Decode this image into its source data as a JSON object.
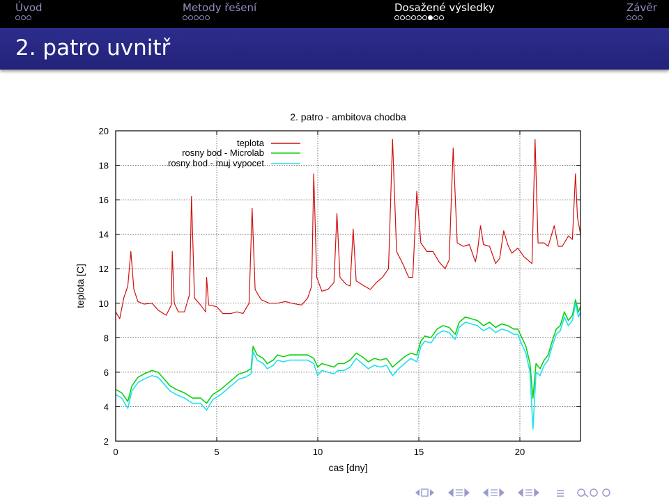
{
  "header": {
    "sections": [
      {
        "label": "Úvod",
        "dots": 3,
        "current": -1,
        "active": false
      },
      {
        "label": "Metody řešení",
        "dots": 5,
        "current": -1,
        "active": false
      },
      {
        "label": "Dosažené výsledky",
        "dots": 9,
        "current": 6,
        "active": true
      },
      {
        "label": "Závěr",
        "dots": 3,
        "current": -1,
        "active": false
      }
    ]
  },
  "frame": {
    "title": "2. patro uvnitř"
  },
  "colors": {
    "teplota": "#d01010",
    "microlab": "#10d010",
    "vypocet": "#20e0f0",
    "header_bg": "#000000",
    "title_bg": "#2c2c8c"
  },
  "icons": [
    "nav-left-icon",
    "nav-frame-icon",
    "nav-right-icon",
    "nav-subsection-icon",
    "nav-section-icon",
    "nav-document-icon",
    "nav-align-icon",
    "nav-search-icon"
  ],
  "chart_data": {
    "type": "line",
    "title": "2. patro - ambitova chodba",
    "xlabel": "cas [dny]",
    "ylabel": "teplota [C]",
    "xlim": [
      0,
      23
    ],
    "ylim": [
      2,
      20
    ],
    "xticks": [
      0,
      5,
      10,
      15,
      20
    ],
    "yticks": [
      2,
      4,
      6,
      8,
      10,
      12,
      14,
      16,
      18,
      20
    ],
    "grid": true,
    "legend": "top-left",
    "series": [
      {
        "name": "teplota",
        "color": "#d01010",
        "points": [
          [
            0,
            9.5
          ],
          [
            0.2,
            9.1
          ],
          [
            0.4,
            10.3
          ],
          [
            0.6,
            11.0
          ],
          [
            0.75,
            13.0
          ],
          [
            0.9,
            10.8
          ],
          [
            1.1,
            10.1
          ],
          [
            1.4,
            9.95
          ],
          [
            1.8,
            10.0
          ],
          [
            2.1,
            9.6
          ],
          [
            2.5,
            9.3
          ],
          [
            2.75,
            9.9
          ],
          [
            2.8,
            13.0
          ],
          [
            2.9,
            10.0
          ],
          [
            3.1,
            9.5
          ],
          [
            3.4,
            9.5
          ],
          [
            3.65,
            10.5
          ],
          [
            3.75,
            16.2
          ],
          [
            3.9,
            10.3
          ],
          [
            4.2,
            9.9
          ],
          [
            4.45,
            9.5
          ],
          [
            4.5,
            11.5
          ],
          [
            4.6,
            9.9
          ],
          [
            5.0,
            9.8
          ],
          [
            5.3,
            9.4
          ],
          [
            5.7,
            9.4
          ],
          [
            6.0,
            9.5
          ],
          [
            6.3,
            9.4
          ],
          [
            6.6,
            10.0
          ],
          [
            6.75,
            15.5
          ],
          [
            6.9,
            10.8
          ],
          [
            7.2,
            10.2
          ],
          [
            7.6,
            10.0
          ],
          [
            8.0,
            10.0
          ],
          [
            8.4,
            10.1
          ],
          [
            8.7,
            10.0
          ],
          [
            9.2,
            9.9
          ],
          [
            9.5,
            10.3
          ],
          [
            9.7,
            11.0
          ],
          [
            9.8,
            17.5
          ],
          [
            9.95,
            11.5
          ],
          [
            10.2,
            10.7
          ],
          [
            10.5,
            10.8
          ],
          [
            10.8,
            11.2
          ],
          [
            10.95,
            15.2
          ],
          [
            11.1,
            11.5
          ],
          [
            11.4,
            11.1
          ],
          [
            11.6,
            11.0
          ],
          [
            11.75,
            14.3
          ],
          [
            11.9,
            11.3
          ],
          [
            12.3,
            11.0
          ],
          [
            12.6,
            10.8
          ],
          [
            12.9,
            11.2
          ],
          [
            13.2,
            11.5
          ],
          [
            13.5,
            12.0
          ],
          [
            13.7,
            19.5
          ],
          [
            13.9,
            13.0
          ],
          [
            14.2,
            12.3
          ],
          [
            14.5,
            11.5
          ],
          [
            14.7,
            11.5
          ],
          [
            14.9,
            16.5
          ],
          [
            15.1,
            13.5
          ],
          [
            15.4,
            13.0
          ],
          [
            15.7,
            13.0
          ],
          [
            16.0,
            12.4
          ],
          [
            16.3,
            12.0
          ],
          [
            16.5,
            12.5
          ],
          [
            16.7,
            19.0
          ],
          [
            16.9,
            13.5
          ],
          [
            17.2,
            13.3
          ],
          [
            17.5,
            13.4
          ],
          [
            17.8,
            12.4
          ],
          [
            17.9,
            13.0
          ],
          [
            18.05,
            14.5
          ],
          [
            18.2,
            13.4
          ],
          [
            18.5,
            13.3
          ],
          [
            18.8,
            12.3
          ],
          [
            19.0,
            12.6
          ],
          [
            19.2,
            14.2
          ],
          [
            19.4,
            13.4
          ],
          [
            19.6,
            12.9
          ],
          [
            19.9,
            13.2
          ],
          [
            20.2,
            12.7
          ],
          [
            20.6,
            12.3
          ],
          [
            20.75,
            19.5
          ],
          [
            20.9,
            13.5
          ],
          [
            21.2,
            13.5
          ],
          [
            21.4,
            13.3
          ],
          [
            21.7,
            14.5
          ],
          [
            21.9,
            13.3
          ],
          [
            22.1,
            13.3
          ],
          [
            22.4,
            13.9
          ],
          [
            22.6,
            13.7
          ],
          [
            22.75,
            17.5
          ],
          [
            22.85,
            15.0
          ],
          [
            23.0,
            14.0
          ]
        ]
      },
      {
        "name": "rosny bod - Microlab",
        "color": "#10d010",
        "points": [
          [
            0,
            5.0
          ],
          [
            0.3,
            4.8
          ],
          [
            0.6,
            4.3
          ],
          [
            0.8,
            5.2
          ],
          [
            1.1,
            5.7
          ],
          [
            1.4,
            5.9
          ],
          [
            1.8,
            6.1
          ],
          [
            2.1,
            6.0
          ],
          [
            2.4,
            5.6
          ],
          [
            2.7,
            5.2
          ],
          [
            3.0,
            5.0
          ],
          [
            3.4,
            4.8
          ],
          [
            3.8,
            4.5
          ],
          [
            4.2,
            4.5
          ],
          [
            4.5,
            4.2
          ],
          [
            4.8,
            4.7
          ],
          [
            5.2,
            5.0
          ],
          [
            5.5,
            5.3
          ],
          [
            5.8,
            5.6
          ],
          [
            6.1,
            5.9
          ],
          [
            6.4,
            6.0
          ],
          [
            6.7,
            6.2
          ],
          [
            6.8,
            7.5
          ],
          [
            7.0,
            7.0
          ],
          [
            7.3,
            6.8
          ],
          [
            7.5,
            6.5
          ],
          [
            7.8,
            6.7
          ],
          [
            8.0,
            7.0
          ],
          [
            8.3,
            6.9
          ],
          [
            8.6,
            7.0
          ],
          [
            8.9,
            7.0
          ],
          [
            9.2,
            7.0
          ],
          [
            9.5,
            7.0
          ],
          [
            9.8,
            6.8
          ],
          [
            10.0,
            6.3
          ],
          [
            10.2,
            6.5
          ],
          [
            10.5,
            6.4
          ],
          [
            10.8,
            6.3
          ],
          [
            11.0,
            6.5
          ],
          [
            11.3,
            6.5
          ],
          [
            11.6,
            6.7
          ],
          [
            11.9,
            7.1
          ],
          [
            12.2,
            6.9
          ],
          [
            12.5,
            6.6
          ],
          [
            12.8,
            6.8
          ],
          [
            13.1,
            6.7
          ],
          [
            13.4,
            6.8
          ],
          [
            13.7,
            6.3
          ],
          [
            14.0,
            6.6
          ],
          [
            14.3,
            6.9
          ],
          [
            14.6,
            7.1
          ],
          [
            14.9,
            7.0
          ],
          [
            15.1,
            7.8
          ],
          [
            15.3,
            8.1
          ],
          [
            15.6,
            8.0
          ],
          [
            15.9,
            8.5
          ],
          [
            16.2,
            8.7
          ],
          [
            16.5,
            8.6
          ],
          [
            16.8,
            8.2
          ],
          [
            17.0,
            8.9
          ],
          [
            17.3,
            9.2
          ],
          [
            17.6,
            9.1
          ],
          [
            17.9,
            9.0
          ],
          [
            18.2,
            8.7
          ],
          [
            18.5,
            8.9
          ],
          [
            18.8,
            8.6
          ],
          [
            19.1,
            8.8
          ],
          [
            19.4,
            8.7
          ],
          [
            19.7,
            8.5
          ],
          [
            19.9,
            8.5
          ],
          [
            20.1,
            8.0
          ],
          [
            20.3,
            7.5
          ],
          [
            20.5,
            6.5
          ],
          [
            20.65,
            4.5
          ],
          [
            20.8,
            6.5
          ],
          [
            21.0,
            6.2
          ],
          [
            21.2,
            6.7
          ],
          [
            21.4,
            7.0
          ],
          [
            21.6,
            7.8
          ],
          [
            21.8,
            8.5
          ],
          [
            22.0,
            8.7
          ],
          [
            22.2,
            9.5
          ],
          [
            22.4,
            9.0
          ],
          [
            22.6,
            9.3
          ],
          [
            22.75,
            10.2
          ],
          [
            22.9,
            9.5
          ],
          [
            23.0,
            9.8
          ]
        ]
      },
      {
        "name": "rosny bod - muj vypocet",
        "color": "#20e0f0",
        "points": [
          [
            0,
            4.7
          ],
          [
            0.3,
            4.5
          ],
          [
            0.6,
            3.9
          ],
          [
            0.8,
            4.9
          ],
          [
            1.1,
            5.4
          ],
          [
            1.4,
            5.6
          ],
          [
            1.8,
            5.8
          ],
          [
            2.1,
            5.7
          ],
          [
            2.4,
            5.3
          ],
          [
            2.7,
            4.9
          ],
          [
            3.0,
            4.7
          ],
          [
            3.4,
            4.5
          ],
          [
            3.8,
            4.2
          ],
          [
            4.2,
            4.2
          ],
          [
            4.5,
            3.8
          ],
          [
            4.8,
            4.4
          ],
          [
            5.2,
            4.7
          ],
          [
            5.5,
            5.0
          ],
          [
            5.8,
            5.3
          ],
          [
            6.1,
            5.6
          ],
          [
            6.4,
            5.7
          ],
          [
            6.7,
            5.9
          ],
          [
            6.8,
            7.2
          ],
          [
            7.0,
            6.7
          ],
          [
            7.3,
            6.5
          ],
          [
            7.5,
            6.2
          ],
          [
            7.8,
            6.4
          ],
          [
            8.0,
            6.7
          ],
          [
            8.3,
            6.6
          ],
          [
            8.6,
            6.7
          ],
          [
            8.9,
            6.7
          ],
          [
            9.2,
            6.7
          ],
          [
            9.5,
            6.7
          ],
          [
            9.8,
            6.5
          ],
          [
            10.0,
            5.8
          ],
          [
            10.2,
            6.1
          ],
          [
            10.5,
            6.0
          ],
          [
            10.8,
            5.9
          ],
          [
            11.0,
            6.1
          ],
          [
            11.3,
            6.1
          ],
          [
            11.6,
            6.3
          ],
          [
            11.9,
            6.8
          ],
          [
            12.2,
            6.5
          ],
          [
            12.5,
            6.2
          ],
          [
            12.8,
            6.4
          ],
          [
            13.1,
            6.3
          ],
          [
            13.4,
            6.4
          ],
          [
            13.7,
            5.8
          ],
          [
            14.0,
            6.2
          ],
          [
            14.3,
            6.5
          ],
          [
            14.6,
            6.8
          ],
          [
            14.9,
            6.6
          ],
          [
            15.1,
            7.5
          ],
          [
            15.3,
            7.8
          ],
          [
            15.6,
            7.7
          ],
          [
            15.9,
            8.2
          ],
          [
            16.2,
            8.4
          ],
          [
            16.5,
            8.3
          ],
          [
            16.8,
            7.9
          ],
          [
            17.0,
            8.6
          ],
          [
            17.3,
            8.9
          ],
          [
            17.6,
            8.8
          ],
          [
            17.9,
            8.7
          ],
          [
            18.2,
            8.4
          ],
          [
            18.5,
            8.6
          ],
          [
            18.8,
            8.3
          ],
          [
            19.1,
            8.5
          ],
          [
            19.4,
            8.4
          ],
          [
            19.7,
            8.2
          ],
          [
            19.9,
            8.2
          ],
          [
            20.1,
            7.6
          ],
          [
            20.3,
            7.1
          ],
          [
            20.5,
            6.0
          ],
          [
            20.65,
            2.7
          ],
          [
            20.8,
            6.0
          ],
          [
            21.0,
            5.8
          ],
          [
            21.2,
            6.4
          ],
          [
            21.4,
            6.7
          ],
          [
            21.6,
            7.5
          ],
          [
            21.8,
            8.2
          ],
          [
            22.0,
            8.4
          ],
          [
            22.2,
            9.2
          ],
          [
            22.4,
            8.7
          ],
          [
            22.6,
            9.0
          ],
          [
            22.75,
            10.0
          ],
          [
            22.9,
            9.2
          ],
          [
            23.0,
            9.5
          ]
        ]
      }
    ]
  }
}
